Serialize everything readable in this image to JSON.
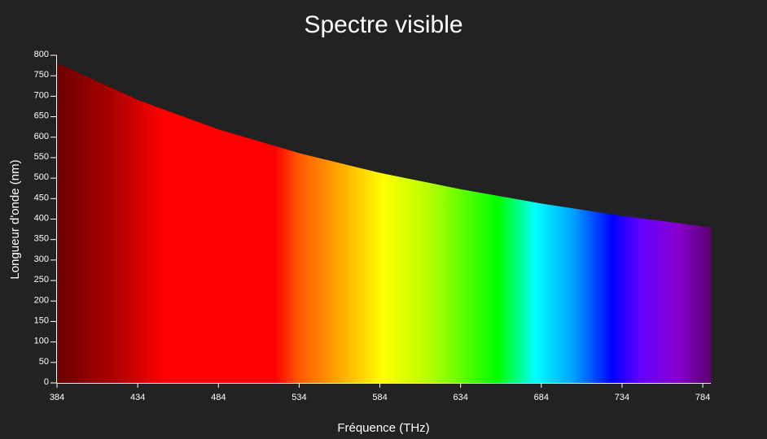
{
  "chart_data": {
    "type": "area",
    "title": "Spectre visible",
    "xlabel": "Fréquence (THz)",
    "ylabel": "Longueur d'onde (nm)",
    "xlim": [
      384,
      789
    ],
    "ylim": [
      0,
      800
    ],
    "x_ticks": [
      384,
      434,
      484,
      534,
      584,
      634,
      684,
      734,
      784
    ],
    "y_ticks": [
      0,
      50,
      100,
      150,
      200,
      250,
      300,
      350,
      400,
      450,
      500,
      550,
      600,
      650,
      700,
      750,
      800
    ],
    "series": [
      {
        "x": [
          384,
          434,
          484,
          534,
          584,
          634,
          684,
          734,
          789
        ],
        "values": [
          781,
          691,
          619,
          561,
          513,
          473,
          438,
          408,
          380
        ]
      }
    ],
    "color_gradient": [
      {
        "x": 384,
        "color": "#6a0000"
      },
      {
        "x": 420,
        "color": "#b00000"
      },
      {
        "x": 450,
        "color": "#ff0000"
      },
      {
        "x": 519,
        "color": "#ff0000"
      },
      {
        "x": 534,
        "color": "#ff5a00"
      },
      {
        "x": 558,
        "color": "#ffa500"
      },
      {
        "x": 586,
        "color": "#ffff00"
      },
      {
        "x": 615,
        "color": "#b4ff00"
      },
      {
        "x": 657,
        "color": "#00ff00"
      },
      {
        "x": 672,
        "color": "#00ffa0"
      },
      {
        "x": 680,
        "color": "#00ffff"
      },
      {
        "x": 704,
        "color": "#00a0ff"
      },
      {
        "x": 728,
        "color": "#0000ff"
      },
      {
        "x": 745,
        "color": "#6400ff"
      },
      {
        "x": 768,
        "color": "#8800d0"
      },
      {
        "x": 789,
        "color": "#5a0070"
      }
    ],
    "colors": {
      "background": "#222222",
      "axis": "#ffffff",
      "text": "#ffffff"
    }
  }
}
